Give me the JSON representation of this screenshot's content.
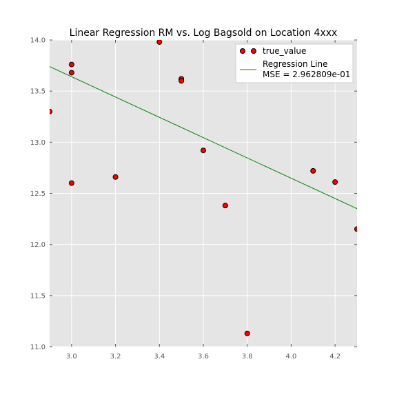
{
  "chart_data": {
    "type": "scatter",
    "title": "Linear Regression RM vs. Log Bagsold on Location 4xxx",
    "xlabel": "",
    "ylabel": "",
    "xlim": [
      2.9,
      4.3
    ],
    "ylim": [
      11.0,
      14.0
    ],
    "xticks": [
      "3.0",
      "3.2",
      "3.4",
      "3.6",
      "3.8",
      "4.0",
      "4.2"
    ],
    "yticks": [
      "11.0",
      "11.5",
      "12.0",
      "12.5",
      "13.0",
      "13.5",
      "14.0"
    ],
    "grid": true,
    "legend_position": "upper-right",
    "series": [
      {
        "name": "true_value",
        "kind": "points",
        "color": "#ff0000",
        "edgecolor": "#000000",
        "points": [
          {
            "x": 2.9,
            "y": 13.3
          },
          {
            "x": 3.0,
            "y": 13.76
          },
          {
            "x": 3.0,
            "y": 13.68
          },
          {
            "x": 3.0,
            "y": 12.6
          },
          {
            "x": 3.2,
            "y": 12.66
          },
          {
            "x": 3.4,
            "y": 13.98
          },
          {
            "x": 3.5,
            "y": 13.62
          },
          {
            "x": 3.5,
            "y": 13.6
          },
          {
            "x": 3.6,
            "y": 12.92
          },
          {
            "x": 3.7,
            "y": 12.38
          },
          {
            "x": 3.8,
            "y": 11.13
          },
          {
            "x": 4.1,
            "y": 12.72
          },
          {
            "x": 4.2,
            "y": 12.61
          },
          {
            "x": 4.3,
            "y": 12.15
          }
        ]
      },
      {
        "name": "Regression Line",
        "name_line2": "MSE = 2.962809e-01",
        "kind": "line",
        "color": "#008000",
        "points": [
          {
            "x": 2.9,
            "y": 13.74
          },
          {
            "x": 4.3,
            "y": 12.35
          }
        ]
      }
    ]
  }
}
